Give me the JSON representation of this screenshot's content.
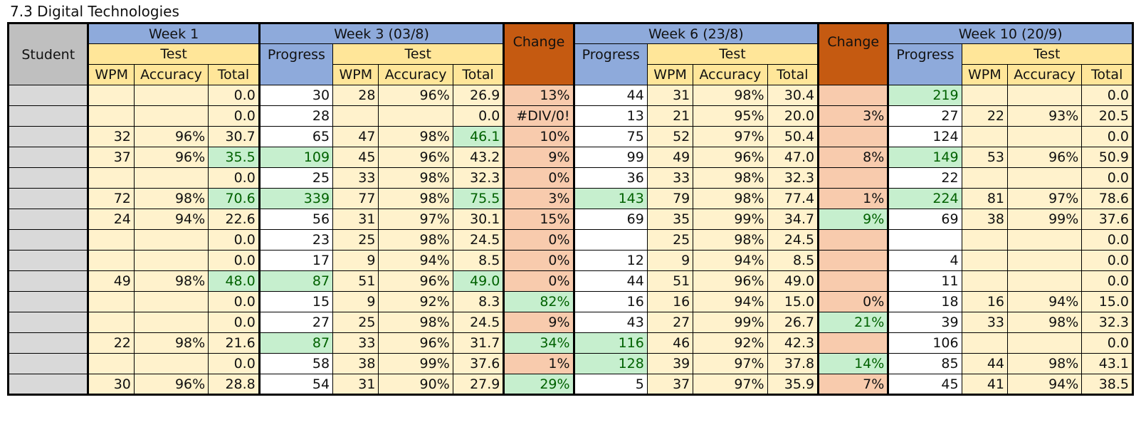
{
  "title": "7.3 Digital Technologies",
  "headers": {
    "student": "Student",
    "week1": "Week 1",
    "week3": "Week 3 (03/8)",
    "week6": "Week 6 (23/8)",
    "week10": "Week 10 (20/9)",
    "test": "Test",
    "progress": "Progress",
    "change": "Change",
    "wpm": "WPM",
    "accuracy": "Accuracy",
    "total": "Total"
  },
  "rows": [
    [
      "",
      "",
      "",
      "0.0",
      "30",
      "28",
      "96%",
      "26.9",
      "13%",
      "44",
      "31",
      "98%",
      "30.4",
      "",
      "219",
      "",
      "",
      "0.0"
    ],
    [
      "",
      "",
      "",
      "0.0",
      "28",
      "",
      "",
      "0.0",
      "#DIV/0!",
      "13",
      "21",
      "95%",
      "20.0",
      "3%",
      "27",
      "22",
      "93%",
      "20.5"
    ],
    [
      "",
      "32",
      "96%",
      "30.7",
      "65",
      "47",
      "98%",
      "46.1",
      "10%",
      "75",
      "52",
      "97%",
      "50.4",
      "",
      "124",
      "",
      "",
      "0.0"
    ],
    [
      "",
      "37",
      "96%",
      "35.5",
      "109",
      "45",
      "96%",
      "43.2",
      "9%",
      "99",
      "49",
      "96%",
      "47.0",
      "8%",
      "149",
      "53",
      "96%",
      "50.9"
    ],
    [
      "",
      "",
      "",
      "0.0",
      "25",
      "33",
      "98%",
      "32.3",
      "0%",
      "36",
      "33",
      "98%",
      "32.3",
      "",
      "22",
      "",
      "",
      "0.0"
    ],
    [
      "",
      "72",
      "98%",
      "70.6",
      "339",
      "77",
      "98%",
      "75.5",
      "3%",
      "143",
      "79",
      "98%",
      "77.4",
      "1%",
      "224",
      "81",
      "97%",
      "78.6"
    ],
    [
      "",
      "24",
      "94%",
      "22.6",
      "56",
      "31",
      "97%",
      "30.1",
      "15%",
      "69",
      "35",
      "99%",
      "34.7",
      "9%",
      "69",
      "38",
      "99%",
      "37.6"
    ],
    [
      "",
      "",
      "",
      "0.0",
      "23",
      "25",
      "98%",
      "24.5",
      "0%",
      "",
      "25",
      "98%",
      "24.5",
      "",
      "",
      "",
      "",
      "0.0"
    ],
    [
      "",
      "",
      "",
      "0.0",
      "17",
      "9",
      "94%",
      "8.5",
      "0%",
      "12",
      "9",
      "94%",
      "8.5",
      "",
      "4",
      "",
      "",
      "0.0"
    ],
    [
      "",
      "49",
      "98%",
      "48.0",
      "87",
      "51",
      "96%",
      "49.0",
      "0%",
      "44",
      "51",
      "96%",
      "49.0",
      "",
      "11",
      "",
      "",
      "0.0"
    ],
    [
      "",
      "",
      "",
      "0.0",
      "15",
      "9",
      "92%",
      "8.3",
      "82%",
      "16",
      "16",
      "94%",
      "15.0",
      "0%",
      "18",
      "16",
      "94%",
      "15.0"
    ],
    [
      "",
      "",
      "",
      "0.0",
      "27",
      "25",
      "98%",
      "24.5",
      "9%",
      "43",
      "27",
      "99%",
      "26.7",
      "21%",
      "39",
      "33",
      "98%",
      "32.3"
    ],
    [
      "",
      "22",
      "98%",
      "21.6",
      "87",
      "33",
      "96%",
      "31.7",
      "34%",
      "116",
      "46",
      "92%",
      "42.3",
      "",
      "106",
      "",
      "",
      "0.0"
    ],
    [
      "",
      "",
      "",
      "0.0",
      "58",
      "38",
      "99%",
      "37.6",
      "1%",
      "128",
      "39",
      "97%",
      "37.8",
      "14%",
      "85",
      "44",
      "98%",
      "43.1"
    ],
    [
      "",
      "30",
      "96%",
      "28.8",
      "54",
      "31",
      "90%",
      "27.9",
      "29%",
      "5",
      "37",
      "97%",
      "35.9",
      "7%",
      "45",
      "41",
      "94%",
      "38.5"
    ]
  ],
  "highlight": [
    [
      0,
      0,
      0,
      0,
      0,
      0,
      0,
      0,
      0,
      0,
      0,
      0,
      0,
      0,
      1,
      0,
      0,
      0
    ],
    [
      0,
      0,
      0,
      0,
      0,
      0,
      0,
      0,
      0,
      0,
      0,
      0,
      0,
      0,
      0,
      0,
      0,
      0
    ],
    [
      0,
      0,
      0,
      0,
      0,
      0,
      0,
      1,
      0,
      0,
      0,
      0,
      0,
      0,
      0,
      0,
      0,
      0
    ],
    [
      0,
      0,
      0,
      1,
      1,
      0,
      0,
      0,
      0,
      0,
      0,
      0,
      0,
      0,
      1,
      0,
      0,
      0
    ],
    [
      0,
      0,
      0,
      0,
      0,
      0,
      0,
      0,
      0,
      0,
      0,
      0,
      0,
      0,
      0,
      0,
      0,
      0
    ],
    [
      0,
      0,
      0,
      1,
      1,
      0,
      0,
      1,
      0,
      1,
      0,
      0,
      0,
      0,
      1,
      0,
      0,
      0
    ],
    [
      0,
      0,
      0,
      0,
      0,
      0,
      0,
      0,
      0,
      0,
      0,
      0,
      0,
      1,
      0,
      0,
      0,
      0
    ],
    [
      0,
      0,
      0,
      0,
      0,
      0,
      0,
      0,
      0,
      0,
      0,
      0,
      0,
      0,
      0,
      0,
      0,
      0
    ],
    [
      0,
      0,
      0,
      0,
      0,
      0,
      0,
      0,
      0,
      0,
      0,
      0,
      0,
      0,
      0,
      0,
      0,
      0
    ],
    [
      0,
      0,
      0,
      1,
      1,
      0,
      0,
      1,
      0,
      0,
      0,
      0,
      0,
      0,
      0,
      0,
      0,
      0
    ],
    [
      0,
      0,
      0,
      0,
      0,
      0,
      0,
      0,
      1,
      0,
      0,
      0,
      0,
      0,
      0,
      0,
      0,
      0
    ],
    [
      0,
      0,
      0,
      0,
      0,
      0,
      0,
      0,
      0,
      0,
      0,
      0,
      0,
      1,
      0,
      0,
      0,
      0
    ],
    [
      0,
      0,
      0,
      0,
      1,
      0,
      0,
      0,
      1,
      1,
      0,
      0,
      0,
      0,
      0,
      0,
      0,
      0
    ],
    [
      0,
      0,
      0,
      0,
      0,
      0,
      0,
      0,
      0,
      1,
      0,
      0,
      0,
      1,
      0,
      0,
      0,
      0
    ],
    [
      0,
      0,
      0,
      0,
      0,
      0,
      0,
      0,
      1,
      0,
      0,
      0,
      0,
      0,
      0,
      0,
      0,
      0
    ]
  ],
  "colors": {
    "header_blue": "#8eaadb",
    "header_yellow": "#ffe699",
    "change_header": "#c55a11",
    "cream": "#fff2cc",
    "salmon": "#f8cbad",
    "green_fill": "#c6efce",
    "green_text": "#006100"
  }
}
